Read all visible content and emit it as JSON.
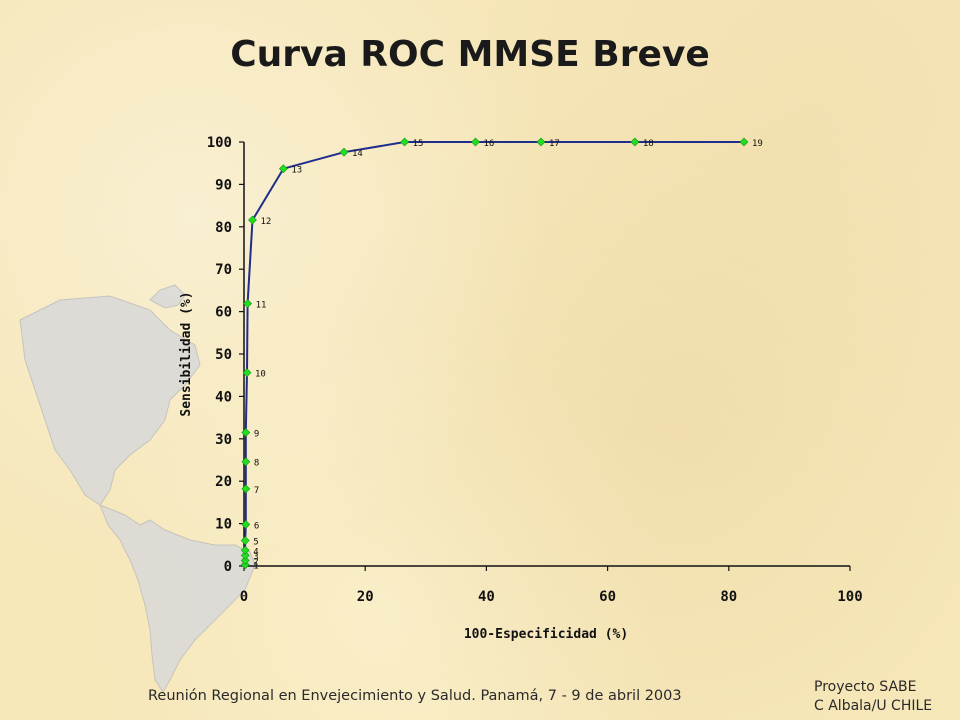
{
  "slide": {
    "footer": "Reunión Regional en Envejecimiento y Salud. Panamá, 7 - 9 de abril 2003",
    "credit_line1": "Proyecto SABE",
    "credit_line2": "C Albala/U CHILE"
  },
  "colors": {
    "line": "#1f2d8c",
    "marker": "#22dd22",
    "background": "#f6e7b9",
    "map": "#d9d9d9"
  },
  "chart_data": {
    "type": "line",
    "title": "Curva ROC MMSE Breve",
    "xlabel": "100-Especificidad (%)",
    "ylabel": "Sensibilidad (%)",
    "xlim": [
      0,
      100
    ],
    "ylim": [
      0,
      100
    ],
    "x_ticks": [
      "0",
      "20",
      "40",
      "60",
      "80",
      "100"
    ],
    "y_ticks": [
      "0",
      "10",
      "20",
      "30",
      "40",
      "50",
      "60",
      "70",
      "80",
      "90",
      "100"
    ],
    "grid": false,
    "legend": "none",
    "points": [
      {
        "label": "1",
        "x": 0.2,
        "y": 0.3
      },
      {
        "label": "2",
        "x": 0.2,
        "y": 1.3
      },
      {
        "label": "3",
        "x": 0.2,
        "y": 2.5
      },
      {
        "label": "4",
        "x": 0.2,
        "y": 3.7
      },
      {
        "label": "5",
        "x": 0.2,
        "y": 6.0
      },
      {
        "label": "6",
        "x": 0.3,
        "y": 9.8
      },
      {
        "label": "7",
        "x": 0.3,
        "y": 18.2
      },
      {
        "label": "8",
        "x": 0.3,
        "y": 24.6
      },
      {
        "label": "9",
        "x": 0.3,
        "y": 31.5
      },
      {
        "label": "10",
        "x": 0.5,
        "y": 45.6
      },
      {
        "label": "11",
        "x": 0.6,
        "y": 61.9
      },
      {
        "label": "12",
        "x": 1.4,
        "y": 81.6
      },
      {
        "label": "13",
        "x": 6.5,
        "y": 93.7
      },
      {
        "label": "14",
        "x": 16.5,
        "y": 97.6
      },
      {
        "label": "15",
        "x": 26.5,
        "y": 100
      },
      {
        "label": "16",
        "x": 38.2,
        "y": 100
      },
      {
        "label": "17",
        "x": 49.0,
        "y": 100
      },
      {
        "label": "18",
        "x": 64.5,
        "y": 100
      },
      {
        "label": "19",
        "x": 82.5,
        "y": 100
      }
    ]
  }
}
